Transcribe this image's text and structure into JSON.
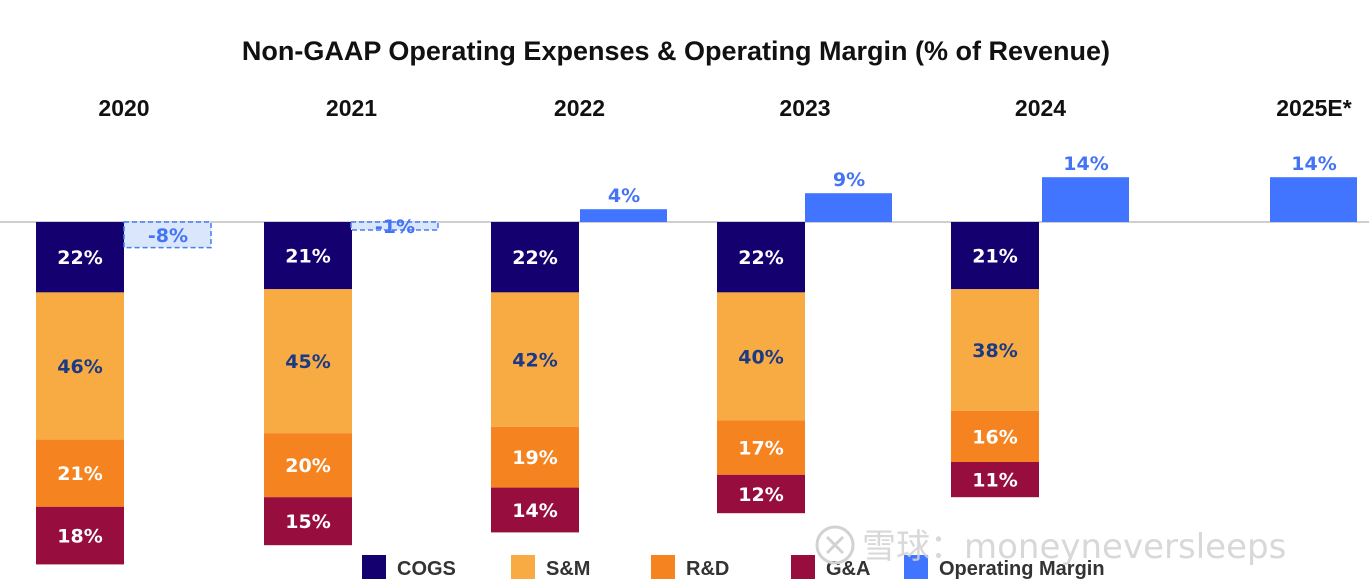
{
  "chart_data": {
    "type": "bar",
    "subtype": "stacked-bar-with-side-bar",
    "title": "Non-GAAP Operating Expenses & Operating Margin (% of Revenue)",
    "xlabel": "",
    "ylabel": "",
    "unit": "% of revenue",
    "categories": [
      "2020",
      "2021",
      "2022",
      "2023",
      "2024",
      "2025E*"
    ],
    "series": [
      {
        "name": "COGS",
        "key": "cogs",
        "color": "#150070",
        "label_color": "#ffffff",
        "direction": "down",
        "values": [
          22,
          21,
          22,
          22,
          21,
          null
        ],
        "labels": [
          "22%",
          "21%",
          "22%",
          "22%",
          "21%",
          ""
        ]
      },
      {
        "name": "S&M",
        "key": "sm",
        "color": "#f9ab43",
        "label_color": "#1b3a86",
        "direction": "down",
        "values": [
          46,
          45,
          42,
          40,
          38,
          null
        ],
        "labels": [
          "46%",
          "45%",
          "42%",
          "40%",
          "38%",
          ""
        ]
      },
      {
        "name": "R&D",
        "key": "rd",
        "color": "#f58420",
        "label_color": "#ffffff",
        "direction": "down",
        "values": [
          21,
          20,
          19,
          17,
          16,
          null
        ],
        "labels": [
          "21%",
          "20%",
          "19%",
          "17%",
          "16%",
          ""
        ]
      },
      {
        "name": "G&A",
        "key": "ga",
        "color": "#960d3e",
        "label_color": "#ffffff",
        "direction": "down",
        "values": [
          18,
          15,
          14,
          12,
          11,
          null
        ],
        "labels": [
          "18%",
          "15%",
          "14%",
          "12%",
          "11%",
          ""
        ]
      },
      {
        "name": "Operating Margin",
        "key": "om",
        "color": "#4174ff",
        "label_color": "#4474f4",
        "direction": "up",
        "values": [
          -8,
          -1,
          4,
          9,
          14,
          14
        ],
        "labels": [
          "-8%",
          "-1%",
          "4%",
          "9%",
          "14%",
          "14%"
        ]
      }
    ],
    "negative_margin_style": {
      "fill": "#d9e6fb",
      "stroke": "#4a7cf5",
      "dashed": true
    },
    "baseline": 0,
    "grid": false,
    "legend": {
      "position": "bottom-center",
      "items": [
        "COGS",
        "S&M",
        "R&D",
        "G&A",
        "Operating Margin"
      ]
    }
  },
  "watermark": {
    "text": "雪球：moneyneversleeps",
    "icon": "snowball-logo-icon"
  }
}
